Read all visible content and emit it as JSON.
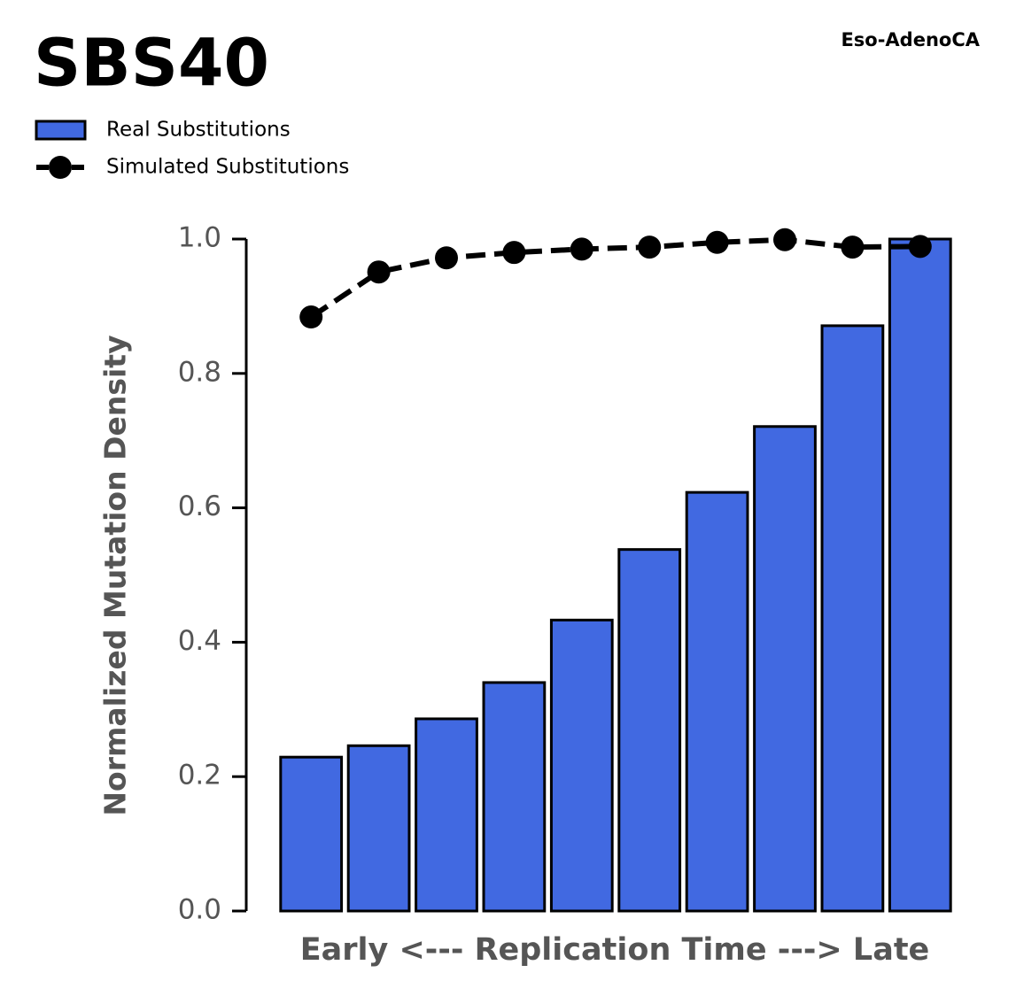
{
  "chart_data": {
    "type": "bar_line",
    "title": "SBS40",
    "subtitle": "Eso-AdenoCA",
    "xlabel": "Early <--- Replication Time ---> Late",
    "ylabel": "Normalized Mutation Density",
    "categories": [
      null,
      null,
      null,
      null,
      null,
      null,
      null,
      null,
      null,
      null
    ],
    "series": [
      {
        "name": "Real Substitutions",
        "kind": "bar",
        "color": "#4169e1",
        "values": [
          0.229,
          0.246,
          0.286,
          0.34,
          0.433,
          0.538,
          0.623,
          0.721,
          0.871,
          1.0
        ]
      },
      {
        "name": "Simulated Substitutions",
        "kind": "line",
        "color": "#000000",
        "values": [
          0.884,
          0.951,
          0.972,
          0.98,
          0.985,
          0.988,
          0.995,
          0.999,
          0.988,
          0.989
        ]
      }
    ],
    "ylim": [
      0,
      1
    ],
    "yticks": [
      {
        "value": 0,
        "label": "0.0"
      },
      0.2,
      0.4,
      0.6,
      0.8,
      {
        "value": 1,
        "label": "1.0"
      }
    ],
    "grid": false
  }
}
